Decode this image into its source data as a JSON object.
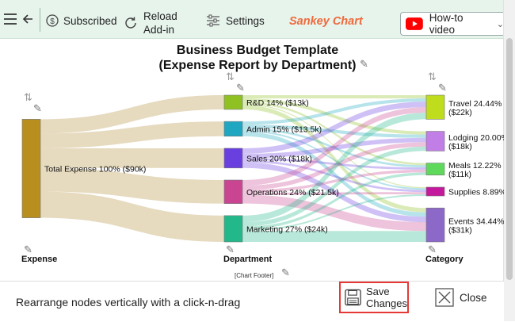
{
  "toolbar": {
    "subscribed_label": "Subscribed",
    "reload_label_line1": "Reload",
    "reload_label_line2": "Add-in",
    "settings_label": "Settings",
    "app_title": "Sankey Chart",
    "howto_label": "How-to video",
    "accent_color": "#ef6a3c",
    "background_color": "#e7f4ec"
  },
  "chart": {
    "title_line1": "Business Budget Template",
    "title_line2": "(Expense Report by Department)",
    "footer": "[Chart Footer]"
  },
  "chart_data": {
    "type": "sankey",
    "title": "Business Budget Template (Expense Report by Department)",
    "columns": [
      "Expense",
      "Department",
      "Category"
    ],
    "nodes": [
      {
        "id": "total",
        "column": 0,
        "label": "Total Expense 100% ($90k)",
        "value": 90,
        "color": "#b88e1f"
      },
      {
        "id": "rd",
        "column": 1,
        "label": "R&D 14% ($13k)",
        "value": 13,
        "color": "#90c122"
      },
      {
        "id": "admin",
        "column": 1,
        "label": "Admin 15% ($13.5k)",
        "value": 13.5,
        "color": "#1fa7c2"
      },
      {
        "id": "sales",
        "column": 1,
        "label": "Sales 20% ($18k)",
        "value": 18,
        "color": "#6a3fe0"
      },
      {
        "id": "operations",
        "column": 1,
        "label": "Operations 24% ($21.5k)",
        "value": 21.5,
        "color": "#c94592"
      },
      {
        "id": "marketing",
        "column": 1,
        "label": "Marketing 27% ($24k)",
        "value": 24,
        "color": "#23b88a"
      },
      {
        "id": "travel",
        "column": 2,
        "label_line1": "Travel 24.44%",
        "label_line2": "($22k)",
        "value": 22,
        "color": "#bfdd1c"
      },
      {
        "id": "lodging",
        "column": 2,
        "label_line1": "Lodging 20.00%",
        "label_line2": "($18k)",
        "value": 18,
        "color": "#c07ee6"
      },
      {
        "id": "meals",
        "column": 2,
        "label_line1": "Meals 12.22%",
        "label_line2": "($11k)",
        "value": 11,
        "color": "#5fd95c"
      },
      {
        "id": "supplies",
        "column": 2,
        "label_line1": "Supplies 8.89%",
        "label_line2": "",
        "value": 8,
        "color": "#c4199c"
      },
      {
        "id": "events",
        "column": 2,
        "label_line1": "Events 34.44%",
        "label_line2": "($31k)",
        "value": 31,
        "color": "#8c68c9"
      }
    ],
    "links": [
      {
        "source": "total",
        "target": "rd",
        "value": 13
      },
      {
        "source": "total",
        "target": "admin",
        "value": 13.5
      },
      {
        "source": "total",
        "target": "sales",
        "value": 18
      },
      {
        "source": "total",
        "target": "operations",
        "value": 21.5
      },
      {
        "source": "total",
        "target": "marketing",
        "value": 24
      },
      {
        "source": "rd",
        "target": "travel",
        "value": 3
      },
      {
        "source": "rd",
        "target": "lodging",
        "value": 3
      },
      {
        "source": "rd",
        "target": "meals",
        "value": 2
      },
      {
        "source": "rd",
        "target": "supplies",
        "value": 1
      },
      {
        "source": "rd",
        "target": "events",
        "value": 4
      },
      {
        "source": "admin",
        "target": "travel",
        "value": 3
      },
      {
        "source": "admin",
        "target": "lodging",
        "value": 3
      },
      {
        "source": "admin",
        "target": "meals",
        "value": 2
      },
      {
        "source": "admin",
        "target": "supplies",
        "value": 1.5
      },
      {
        "source": "admin",
        "target": "events",
        "value": 4
      },
      {
        "source": "sales",
        "target": "travel",
        "value": 5
      },
      {
        "source": "sales",
        "target": "lodging",
        "value": 4
      },
      {
        "source": "sales",
        "target": "meals",
        "value": 2
      },
      {
        "source": "sales",
        "target": "supplies",
        "value": 2
      },
      {
        "source": "sales",
        "target": "events",
        "value": 5
      },
      {
        "source": "operations",
        "target": "travel",
        "value": 5
      },
      {
        "source": "operations",
        "target": "lodging",
        "value": 4
      },
      {
        "source": "operations",
        "target": "meals",
        "value": 2.5
      },
      {
        "source": "operations",
        "target": "supplies",
        "value": 2
      },
      {
        "source": "operations",
        "target": "events",
        "value": 8
      },
      {
        "source": "marketing",
        "target": "travel",
        "value": 6
      },
      {
        "source": "marketing",
        "target": "lodging",
        "value": 4
      },
      {
        "source": "marketing",
        "target": "meals",
        "value": 2.5
      },
      {
        "source": "marketing",
        "target": "supplies",
        "value": 1.5
      },
      {
        "source": "marketing",
        "target": "events",
        "value": 10
      }
    ]
  },
  "bottom_bar": {
    "hint": "Rearrange nodes vertically with a click-n-drag",
    "save_line1": "Save",
    "save_line2": "Changes",
    "close_label": "Close"
  }
}
